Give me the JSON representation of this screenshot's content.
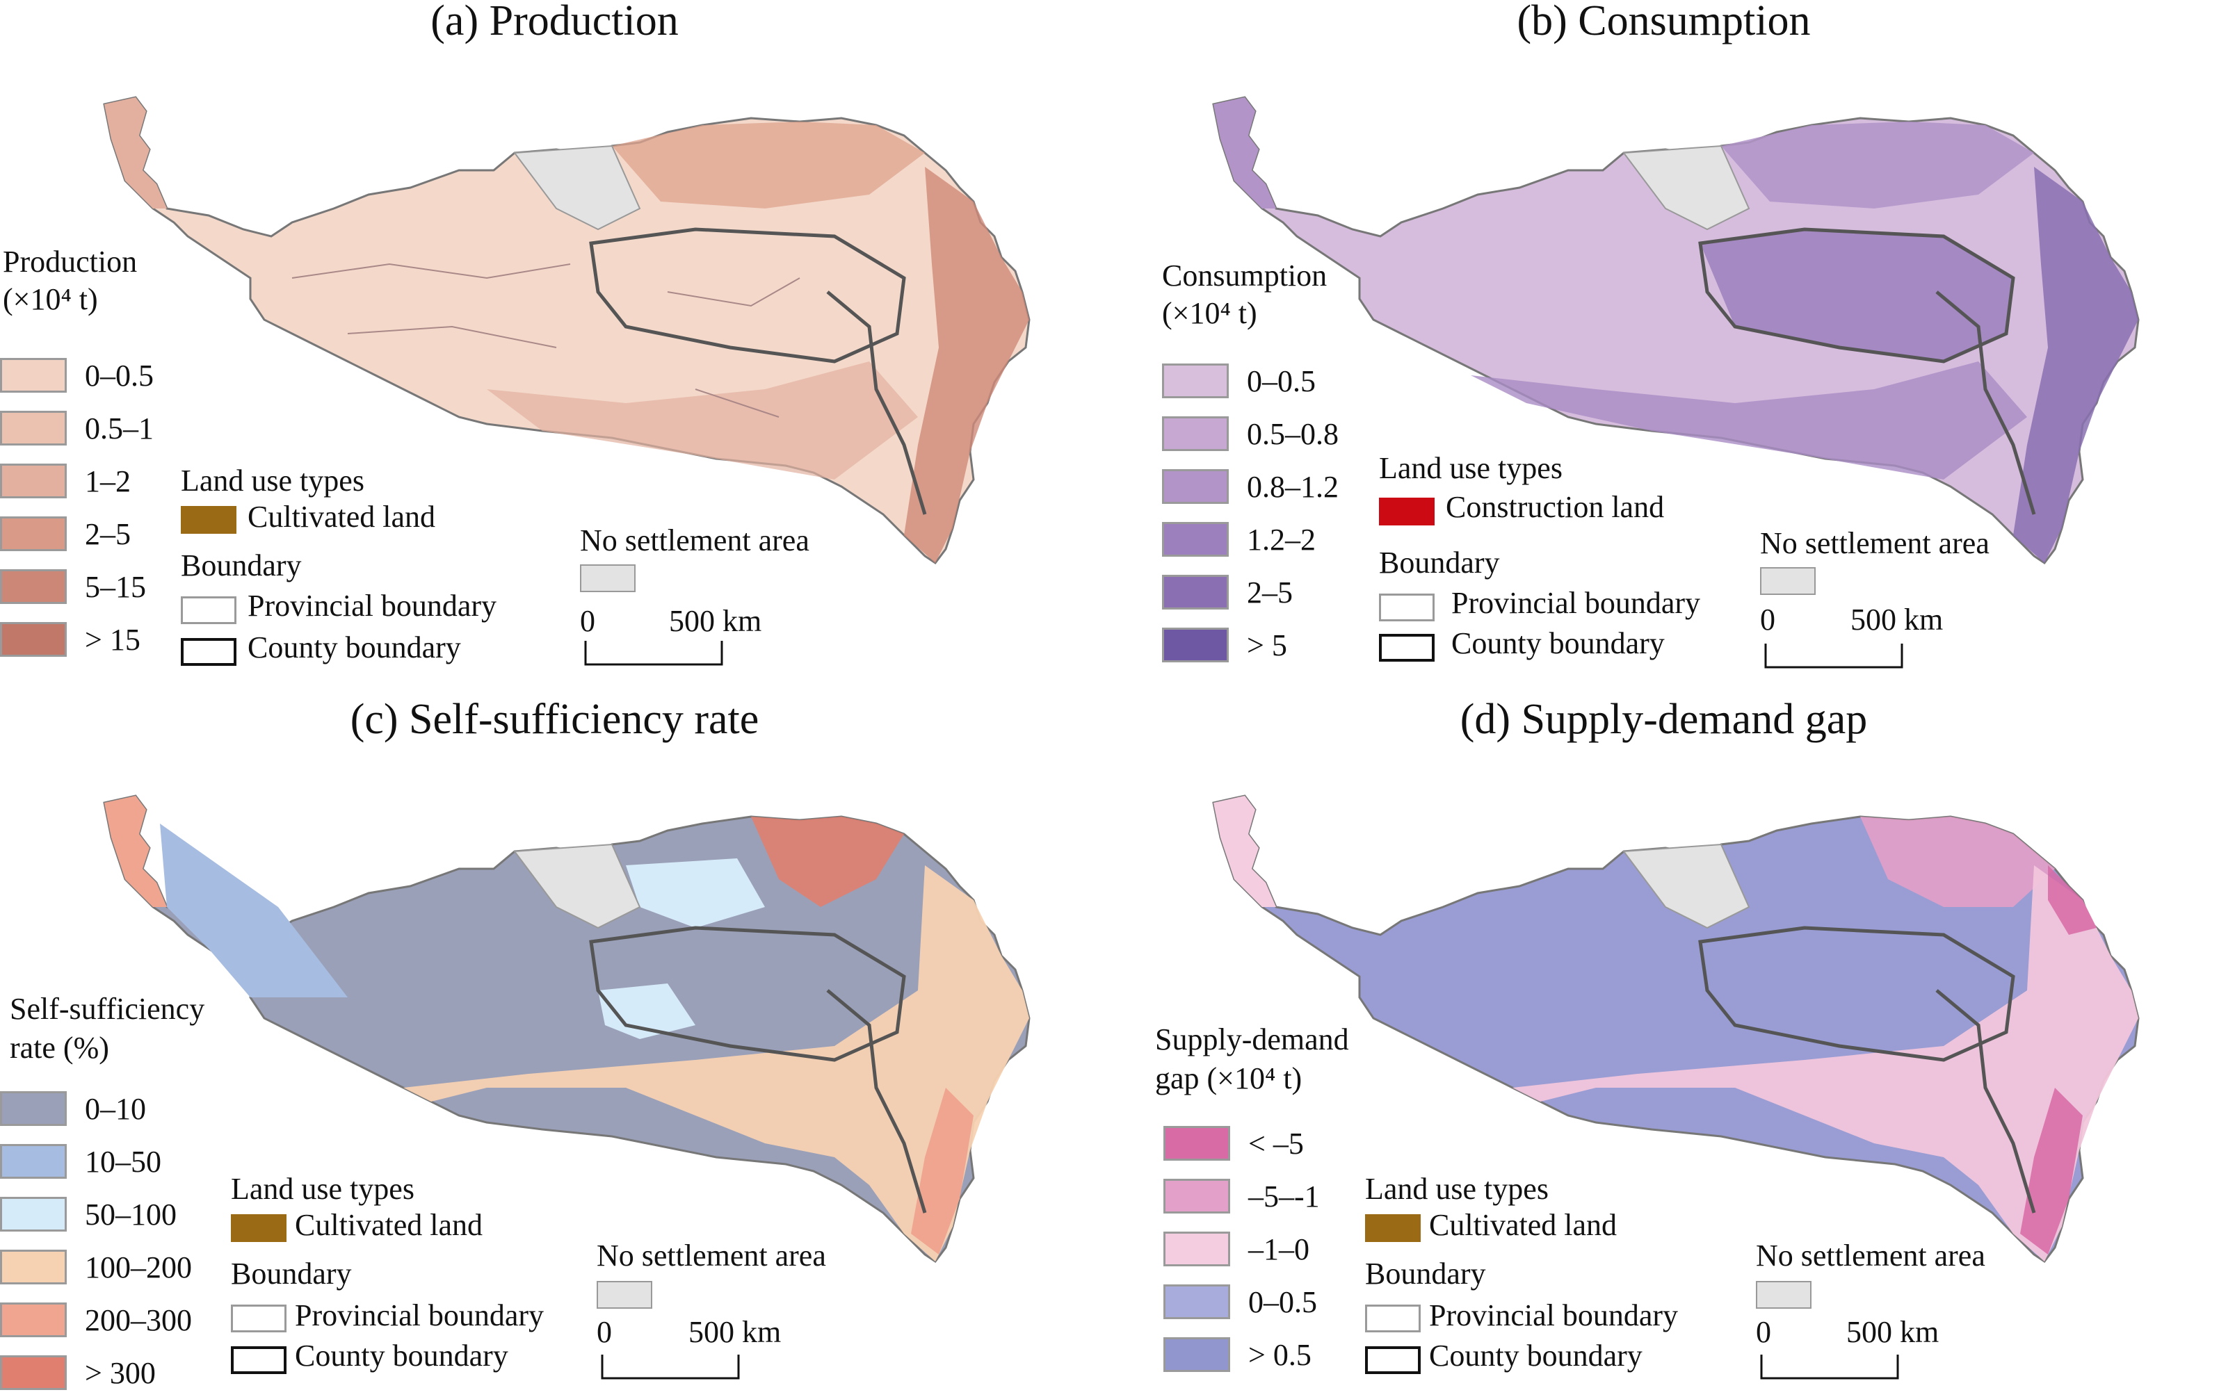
{
  "panels": [
    {
      "title": "(a) Production",
      "legend_title_1": "Production",
      "legend_title_2": "(×10⁴ t)",
      "classes": [
        {
          "label": "0–0.5",
          "color": "#f2d3c3"
        },
        {
          "label": "0.5–1",
          "color": "#ebc2b0"
        },
        {
          "label": "1–2",
          "color": "#e3b0a0"
        },
        {
          "label": "2–5",
          "color": "#d99a88"
        },
        {
          "label": "5–15",
          "color": "#cd8776"
        },
        {
          "label": "> 15",
          "color": "#c27868"
        }
      ],
      "map_fill": "#f4d9cb",
      "map_accent": "#dfa38e",
      "land_use_title": "Land use types",
      "land_use_item": "Cultivated land",
      "land_use_color": "#9a6a14"
    },
    {
      "title": "(b) Consumption",
      "legend_title_1": "Consumption",
      "legend_title_2": "(×10⁴ t)",
      "classes": [
        {
          "label": "0–0.5",
          "color": "#d8bfdc"
        },
        {
          "label": "0.5–0.8",
          "color": "#c6a8d3"
        },
        {
          "label": "0.8–1.2",
          "color": "#b294c9"
        },
        {
          "label": "1.2–2",
          "color": "#9c80bd"
        },
        {
          "label": "2–5",
          "color": "#8a70b2"
        },
        {
          "label": "> 5",
          "color": "#6f58a3"
        }
      ],
      "map_fill": "#d6bddd",
      "map_accent": "#9c80bd",
      "land_use_title": "Land use types",
      "land_use_item": "Construction land",
      "land_use_color": "#cc0a14"
    },
    {
      "title": "(c) Self-sufficiency rate",
      "legend_title_1": "Self-sufficiency",
      "legend_title_2": "rate (%)",
      "classes": [
        {
          "label": "0–10",
          "color": "#9aa0b8"
        },
        {
          "label": "10–50",
          "color": "#a6bce0"
        },
        {
          "label": "50–100",
          "color": "#d6ebfa"
        },
        {
          "label": "100–200",
          "color": "#f7d2b2"
        },
        {
          "label": "200–300",
          "color": "#efa590"
        },
        {
          "label": "> 300",
          "color": "#e07f70"
        }
      ],
      "map_fill": "#9aa0b8",
      "map_accent": "#f7d2b2",
      "land_use_title": "Land use types",
      "land_use_item": "Cultivated land",
      "land_use_color": "#9a6a14"
    },
    {
      "title": "(d) Supply-demand gap",
      "legend_title_1": "Supply-demand",
      "legend_title_2": "gap (×10⁴ t)",
      "classes": [
        {
          "label": "< –5",
          "color": "#d86aa5"
        },
        {
          "label": "–5–-1",
          "color": "#e3a0c8"
        },
        {
          "label": "–1–0",
          "color": "#f5cde0"
        },
        {
          "label": "0–0.5",
          "color": "#a8acdc"
        },
        {
          "label": "> 0.5",
          "color": "#9296cf"
        }
      ],
      "map_fill": "#999dd3",
      "map_accent": "#f2c6dc",
      "land_use_title": "Land use types",
      "land_use_item": "Cultivated land",
      "land_use_color": "#9a6a14"
    }
  ],
  "common": {
    "boundary_title": "Boundary",
    "provincial_boundary": "Provincial boundary",
    "county_boundary": "County boundary",
    "no_settlement": "No settlement area",
    "no_settlement_color": "#e3e3e3",
    "scale_zero": "0",
    "scale_end": "500 km"
  }
}
